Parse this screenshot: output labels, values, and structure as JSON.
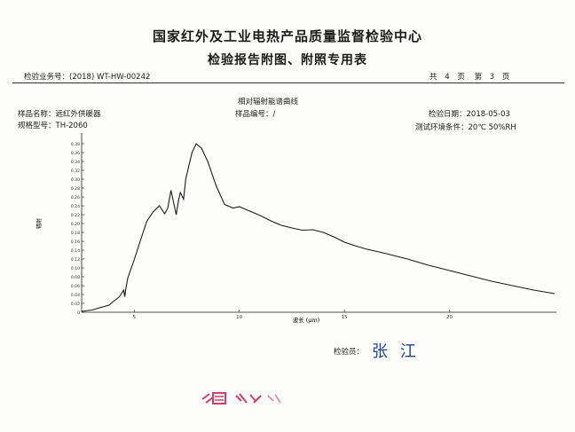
{
  "header": {
    "title_line1": "国家红外及工业电热产品质量监督检验中心",
    "title_line2": "检验报告附图、附照专用表",
    "business_no": "检验业务号：(2018) WT-HW-00242",
    "page_info": {
      "total_label": "共",
      "total": "4",
      "page_label": "页",
      "current_label": "第",
      "current": "3",
      "current_unit": "页"
    }
  },
  "info": {
    "chart_title": "相对辐射能谱曲线",
    "sample_name": "样品名称：远红外供暖器",
    "model": "规格型号：TH-2060",
    "sample_no": "样品编号：/",
    "test_date": "检验日期：2018-05-03",
    "environment": "测试环境条件：20℃ 50%RH"
  },
  "chart_data": {
    "type": "line",
    "title": "相对辐射能谱曲线",
    "xlabel": "波长 (μm)",
    "ylabel": "辐射",
    "xlim": [
      2.5,
      25
    ],
    "ylim": [
      0,
      0.4
    ],
    "x_ticks": [
      5,
      10,
      15,
      20
    ],
    "y_ticks": [
      0,
      0.02,
      0.04,
      0.06,
      0.08,
      0.1,
      0.12,
      0.14,
      0.16,
      0.18,
      0.2,
      0.22,
      0.24,
      0.26,
      0.28,
      0.3,
      0.32,
      0.34,
      0.36,
      0.38
    ],
    "y_tick_labels": [
      "0",
      "0.02",
      "0.04",
      "0.06",
      "0.08",
      "0.10",
      "0.12",
      "0.14",
      "0.16",
      "0.18",
      "0.20",
      "0.22",
      "0.24",
      "0.26",
      "0.28",
      "0.30",
      "0.32",
      "0.34",
      "0.36",
      "0.38"
    ],
    "series": [
      {
        "x": [
          2.5,
          2.8,
          3.0,
          3.2,
          3.5,
          3.8,
          4.0,
          4.3,
          4.5,
          4.55,
          4.6,
          4.7,
          5.0,
          5.3,
          5.6,
          5.9,
          6.2,
          6.45,
          6.6,
          6.75,
          6.9,
          7.0,
          7.1,
          7.2,
          7.35,
          7.45,
          7.6,
          7.75,
          7.95,
          8.2,
          8.5,
          8.9,
          9.3,
          9.7,
          10.0,
          10.3,
          10.6,
          11.0,
          11.5,
          12.0,
          12.5,
          13.0,
          13.5,
          14.0,
          14.5,
          15.0,
          15.5,
          16.0,
          17.0,
          18.0,
          19.0,
          20.0,
          21.0,
          22.0,
          23.0,
          24.0,
          25.0
        ],
        "y": [
          0.002,
          0.004,
          0.005,
          0.008,
          0.012,
          0.016,
          0.024,
          0.035,
          0.05,
          0.035,
          0.052,
          0.078,
          0.118,
          0.162,
          0.205,
          0.226,
          0.24,
          0.222,
          0.235,
          0.275,
          0.242,
          0.22,
          0.25,
          0.27,
          0.255,
          0.3,
          0.33,
          0.36,
          0.38,
          0.37,
          0.34,
          0.285,
          0.243,
          0.235,
          0.238,
          0.232,
          0.226,
          0.218,
          0.206,
          0.196,
          0.19,
          0.185,
          0.186,
          0.18,
          0.17,
          0.158,
          0.15,
          0.143,
          0.132,
          0.12,
          0.106,
          0.094,
          0.082,
          0.07,
          0.06,
          0.05,
          0.042
        ]
      }
    ]
  },
  "footer": {
    "inspector_label": "检验员：",
    "inspector_signature": "张 江"
  },
  "colors": {
    "line": "#1a1a1a",
    "signature": "#1f3f8f",
    "stamp": "#d0406a"
  }
}
